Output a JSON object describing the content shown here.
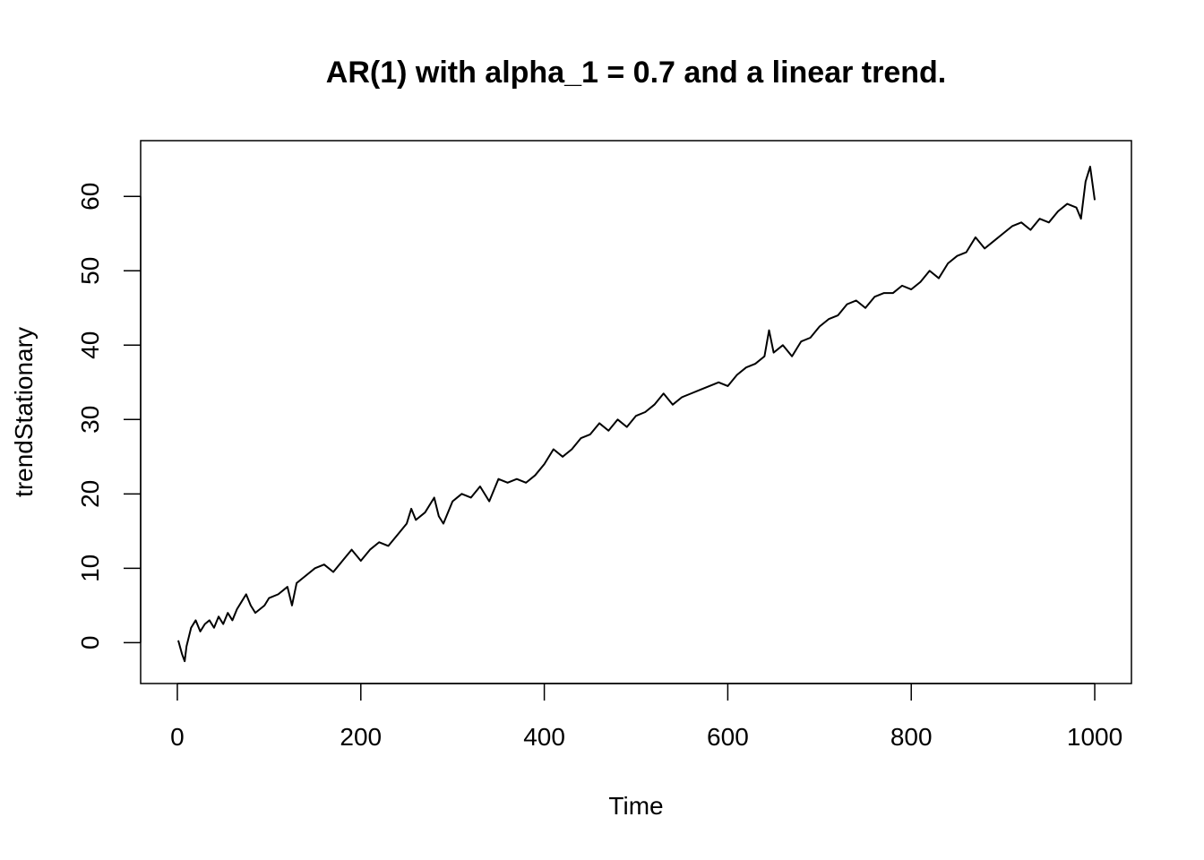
{
  "chart_data": {
    "type": "line",
    "title": "AR(1) with alpha_1 = 0.7 and a linear trend.",
    "xlabel": "Time",
    "ylabel": "trendStationary",
    "xlim": [
      -40,
      1040
    ],
    "ylim": [
      -5.5,
      67.5
    ],
    "x_ticks": [
      0,
      200,
      400,
      600,
      800,
      1000
    ],
    "x_tick_labels": [
      "0",
      "200",
      "400",
      "600",
      "800",
      "1000"
    ],
    "y_ticks": [
      0,
      10,
      20,
      30,
      40,
      50,
      60
    ],
    "y_tick_labels": [
      "0",
      "10",
      "20",
      "30",
      "40",
      "50",
      "60"
    ],
    "grid": false,
    "series": [
      {
        "color": "#000000",
        "x": [
          1,
          5,
          8,
          10,
          15,
          20,
          25,
          30,
          35,
          40,
          45,
          50,
          55,
          60,
          65,
          70,
          75,
          80,
          85,
          90,
          95,
          100,
          110,
          120,
          125,
          130,
          135,
          140,
          150,
          160,
          170,
          180,
          190,
          200,
          210,
          220,
          230,
          240,
          250,
          255,
          260,
          270,
          280,
          285,
          290,
          300,
          310,
          320,
          330,
          340,
          350,
          360,
          370,
          380,
          390,
          400,
          410,
          420,
          430,
          440,
          450,
          460,
          470,
          480,
          490,
          500,
          510,
          520,
          530,
          540,
          550,
          560,
          570,
          580,
          590,
          600,
          610,
          620,
          630,
          640,
          645,
          650,
          660,
          670,
          680,
          690,
          700,
          710,
          720,
          730,
          740,
          750,
          760,
          770,
          780,
          790,
          800,
          810,
          820,
          830,
          840,
          850,
          860,
          870,
          880,
          890,
          900,
          910,
          920,
          930,
          940,
          950,
          960,
          970,
          980,
          985,
          990,
          995,
          1000
        ],
        "y": [
          0.3,
          -1.5,
          -2.5,
          -0.5,
          2.0,
          3.0,
          1.5,
          2.5,
          3.0,
          2.0,
          3.5,
          2.5,
          4.0,
          3.0,
          4.5,
          5.5,
          6.5,
          5.0,
          4.0,
          4.5,
          5.0,
          6.0,
          6.5,
          7.5,
          5.0,
          8.0,
          8.5,
          9.0,
          10.0,
          10.5,
          9.5,
          11.0,
          12.5,
          11.0,
          12.5,
          13.5,
          13.0,
          14.5,
          16.0,
          18.0,
          16.5,
          17.5,
          19.5,
          17.0,
          16.0,
          19.0,
          20.0,
          19.5,
          21.0,
          19.0,
          22.0,
          21.5,
          22.0,
          21.5,
          22.5,
          24.0,
          26.0,
          25.0,
          26.0,
          27.5,
          28.0,
          29.5,
          28.5,
          30.0,
          29.0,
          30.5,
          31.0,
          32.0,
          33.5,
          32.0,
          33.0,
          33.5,
          34.0,
          34.5,
          35.0,
          34.5,
          36.0,
          37.0,
          37.5,
          38.5,
          42.0,
          39.0,
          40.0,
          38.5,
          40.5,
          41.0,
          42.5,
          43.5,
          44.0,
          45.5,
          46.0,
          45.0,
          46.5,
          47.0,
          47.0,
          48.0,
          47.5,
          48.5,
          50.0,
          49.0,
          51.0,
          52.0,
          52.5,
          54.5,
          53.0,
          54.0,
          55.0,
          56.0,
          56.5,
          55.5,
          57.0,
          56.5,
          58.0,
          59.0,
          58.5,
          57.0,
          62.0,
          64.0,
          59.5
        ]
      }
    ]
  }
}
